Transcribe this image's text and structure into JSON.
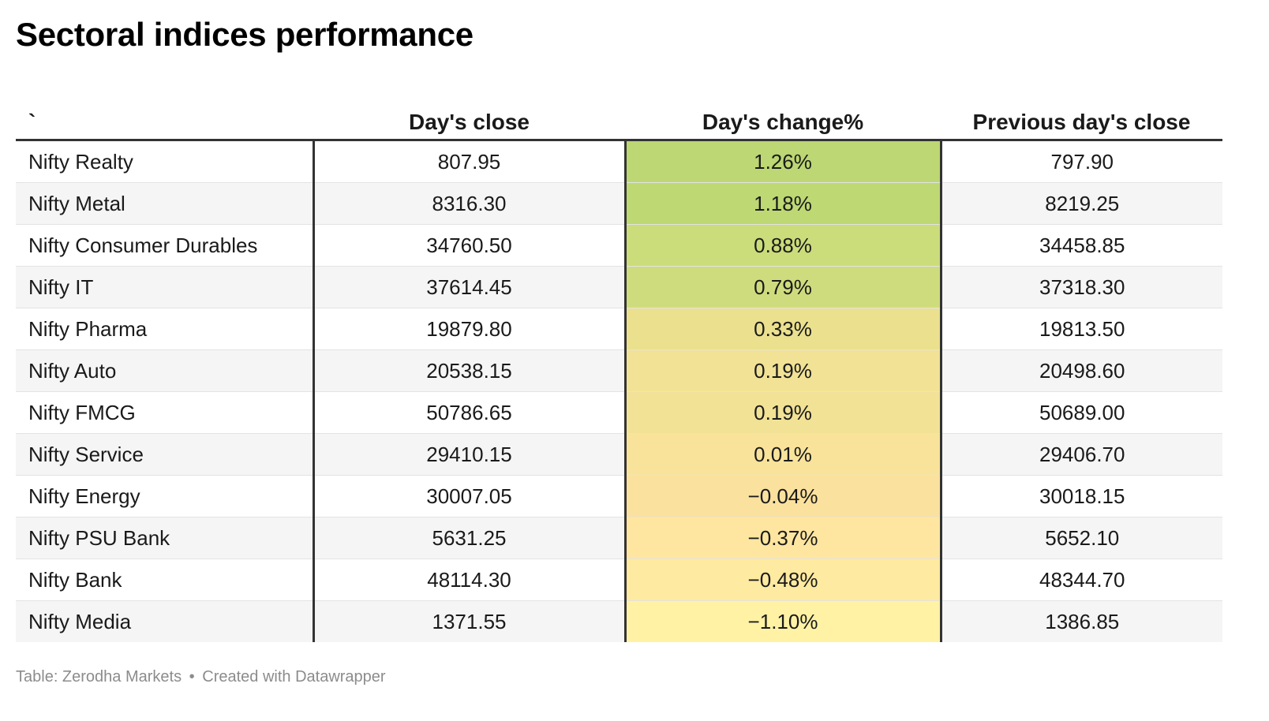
{
  "title": "Sectoral indices performance",
  "chart_data": {
    "type": "table",
    "title": "Sectoral indices performance",
    "columns": [
      "`",
      "Day's close",
      "Day's change%",
      "Previous day's close"
    ],
    "rows": [
      {
        "name": "Nifty Realty",
        "close": "807.95",
        "change": "1.26%",
        "prev": "797.90",
        "change_value": 1.26
      },
      {
        "name": "Nifty Metal",
        "close": "8316.30",
        "change": "1.18%",
        "prev": "8219.25",
        "change_value": 1.18
      },
      {
        "name": "Nifty Consumer Durables",
        "close": "34760.50",
        "change": "0.88%",
        "prev": "34458.85",
        "change_value": 0.88
      },
      {
        "name": "Nifty IT",
        "close": "37614.45",
        "change": "0.79%",
        "prev": "37318.30",
        "change_value": 0.79
      },
      {
        "name": "Nifty Pharma",
        "close": "19879.80",
        "change": "0.33%",
        "prev": "19813.50",
        "change_value": 0.33
      },
      {
        "name": "Nifty Auto",
        "close": "20538.15",
        "change": "0.19%",
        "prev": "20498.60",
        "change_value": 0.19
      },
      {
        "name": "Nifty FMCG",
        "close": "50786.65",
        "change": "0.19%",
        "prev": "50689.00",
        "change_value": 0.19
      },
      {
        "name": "Nifty Service",
        "close": "29410.15",
        "change": "0.01%",
        "prev": "29406.70",
        "change_value": 0.01
      },
      {
        "name": "Nifty Energy",
        "close": "30007.05",
        "change": "−0.04%",
        "prev": "30018.15",
        "change_value": -0.04
      },
      {
        "name": "Nifty PSU Bank",
        "close": "5631.25",
        "change": "−0.37%",
        "prev": "5652.10",
        "change_value": -0.37
      },
      {
        "name": "Nifty Bank",
        "close": "48114.30",
        "change": "−0.48%",
        "prev": "48344.70",
        "change_value": -0.48
      },
      {
        "name": "Nifty Media",
        "close": "1371.55",
        "change": "−1.10%",
        "prev": "1386.85",
        "change_value": -1.1
      }
    ],
    "change_colors": [
      "#bcd773",
      "#bed873",
      "#cbdc7b",
      "#cfdc7e",
      "#ebe08e",
      "#f1e295",
      "#f1e295",
      "#f9e39b",
      "#fbe19e",
      "#fee6a0",
      "#feeaa0",
      "#fff2a5"
    ]
  },
  "footer": {
    "source": "Table: Zerodha Markets",
    "separator": "•",
    "credit": "Created with Datawrapper"
  }
}
